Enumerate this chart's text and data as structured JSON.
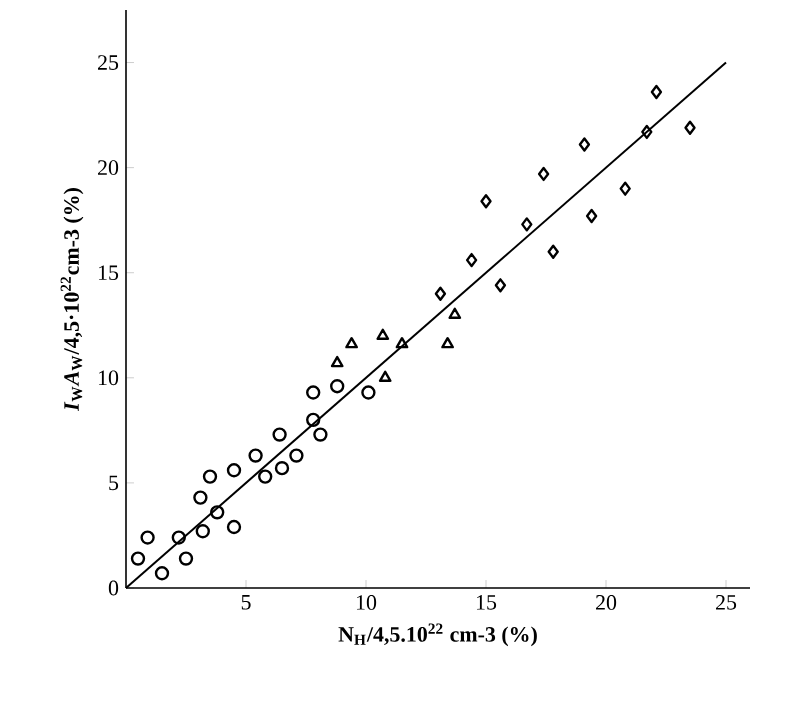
{
  "chart_data": {
    "type": "scatter",
    "xlabel": "N$_{H}$/4,5.10$^{22}$ cm-3 (%)",
    "ylabel": "*I*$_{W}$*A*$_{W}$/4,5·10$^{22}$cm-3 (%)",
    "xlim": [
      0,
      26
    ],
    "ylim": [
      0,
      27.5
    ],
    "xticks": [
      5,
      10,
      15,
      20,
      25
    ],
    "yticks": [
      0,
      5,
      10,
      15,
      20,
      25
    ],
    "series": [
      {
        "color": "#000000",
        "marker": "circle",
        "x": [
          0.5,
          0.9,
          1.5,
          2.2,
          2.5,
          3.2,
          3.1,
          3.5,
          3.8,
          4.5,
          4.5,
          5.8
        ],
        "values": [
          1.4,
          2.4,
          0.7,
          2.4,
          1.4,
          2.7,
          4.3,
          5.3,
          3.6,
          2.9,
          5.6,
          5.3
        ]
      },
      {
        "color": "#000000",
        "marker": "circle",
        "x": [
          5.4,
          6.5,
          6.4,
          7.1,
          7.8,
          7.8,
          8.1,
          8.8,
          10.1
        ],
        "values": [
          6.3,
          5.7,
          7.3,
          6.3,
          9.3,
          8.0,
          7.3,
          9.6,
          9.3
        ]
      },
      {
        "color": "#000000",
        "marker": "triangle",
        "x": [
          8.8,
          9.4,
          10.7,
          10.8,
          11.5,
          13.7,
          13.4
        ],
        "values": [
          10.7,
          11.6,
          12.0,
          10.0,
          11.6,
          13.0,
          11.6
        ]
      },
      {
        "color": "#000000",
        "marker": "diamond",
        "x": [
          13.1,
          14.4,
          15.6,
          15.0,
          16.7,
          17.8,
          17.4,
          19.4,
          19.1,
          20.8,
          21.7,
          22.1,
          23.5
        ],
        "values": [
          14.0,
          15.6,
          14.4,
          18.4,
          17.3,
          16.0,
          19.7,
          17.7,
          21.1,
          19.0,
          21.7,
          23.6,
          21.9
        ]
      },
      {
        "type": "line",
        "color": "#000000",
        "marker": "none",
        "x": [
          0,
          25
        ],
        "values": [
          0,
          25
        ]
      }
    ]
  }
}
